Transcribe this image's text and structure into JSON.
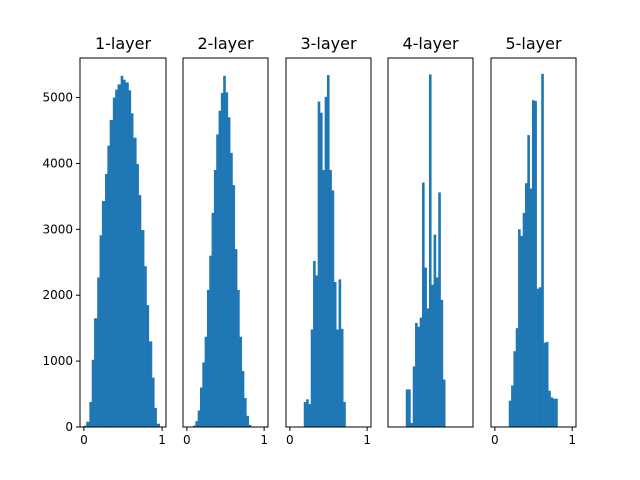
{
  "chart_data": [
    {
      "type": "bar",
      "title": "1-layer",
      "xlim": [
        -0.05,
        1.05
      ],
      "ylim": [
        0,
        5600
      ],
      "x_ticks": [
        "0",
        "1"
      ],
      "y_ticks": [
        "0",
        "1000",
        "2000",
        "3000",
        "4000",
        "5000"
      ],
      "bins": [
        [
          0.0,
          0.03
        ],
        [
          0.03,
          0.07
        ],
        [
          0.07,
          0.1
        ],
        [
          0.1,
          0.13
        ],
        [
          0.13,
          0.17
        ],
        [
          0.17,
          0.2
        ],
        [
          0.2,
          0.23
        ],
        [
          0.23,
          0.27
        ],
        [
          0.27,
          0.3
        ],
        [
          0.3,
          0.33
        ],
        [
          0.33,
          0.37
        ],
        [
          0.37,
          0.4
        ],
        [
          0.4,
          0.43
        ],
        [
          0.43,
          0.47
        ],
        [
          0.47,
          0.5
        ],
        [
          0.5,
          0.53
        ],
        [
          0.53,
          0.57
        ],
        [
          0.57,
          0.6
        ],
        [
          0.6,
          0.63
        ],
        [
          0.63,
          0.67
        ],
        [
          0.67,
          0.7
        ],
        [
          0.7,
          0.73
        ],
        [
          0.73,
          0.77
        ],
        [
          0.77,
          0.8
        ],
        [
          0.8,
          0.83
        ],
        [
          0.83,
          0.87
        ],
        [
          0.87,
          0.9
        ],
        [
          0.9,
          0.93
        ],
        [
          0.93,
          0.97
        ],
        [
          0.97,
          1.0
        ]
      ],
      "values": [
        20,
        80,
        380,
        1020,
        1650,
        2270,
        2910,
        3430,
        3840,
        4270,
        4660,
        5000,
        5120,
        5200,
        5330,
        5270,
        5230,
        5110,
        4760,
        4390,
        3990,
        3520,
        2990,
        2440,
        1850,
        1300,
        750,
        290,
        50,
        5
      ]
    },
    {
      "type": "bar",
      "title": "2-layer",
      "xlim": [
        -0.05,
        1.05
      ],
      "ylim": [
        0,
        5600
      ],
      "x_ticks": [
        "0",
        "1"
      ],
      "bins": [
        [
          0.08,
          0.11
        ],
        [
          0.11,
          0.14
        ],
        [
          0.14,
          0.17
        ],
        [
          0.17,
          0.2
        ],
        [
          0.2,
          0.23
        ],
        [
          0.23,
          0.26
        ],
        [
          0.26,
          0.29
        ],
        [
          0.29,
          0.32
        ],
        [
          0.32,
          0.35
        ],
        [
          0.35,
          0.38
        ],
        [
          0.38,
          0.41
        ],
        [
          0.41,
          0.44
        ],
        [
          0.44,
          0.47
        ],
        [
          0.47,
          0.5
        ],
        [
          0.5,
          0.53
        ],
        [
          0.53,
          0.56
        ],
        [
          0.56,
          0.59
        ],
        [
          0.59,
          0.62
        ],
        [
          0.62,
          0.65
        ],
        [
          0.65,
          0.68
        ],
        [
          0.68,
          0.71
        ],
        [
          0.71,
          0.74
        ],
        [
          0.74,
          0.77
        ],
        [
          0.77,
          0.8
        ],
        [
          0.8,
          0.83
        ],
        [
          0.83,
          0.86
        ],
        [
          0.86,
          0.89
        ]
      ],
      "values": [
        20,
        90,
        250,
        600,
        980,
        1370,
        2080,
        2600,
        3250,
        3900,
        4440,
        4800,
        5070,
        5330,
        5080,
        4700,
        4160,
        3670,
        2700,
        2080,
        1370,
        850,
        440,
        170,
        30,
        5,
        0
      ]
    },
    {
      "type": "bar",
      "title": "3-layer",
      "xlim": [
        -0.05,
        1.05
      ],
      "ylim": [
        0,
        5600
      ],
      "x_ticks": [
        "0",
        "1"
      ],
      "bins": [
        [
          0.18,
          0.21
        ],
        [
          0.21,
          0.24
        ],
        [
          0.24,
          0.27
        ],
        [
          0.27,
          0.3
        ],
        [
          0.3,
          0.33
        ],
        [
          0.33,
          0.36
        ],
        [
          0.36,
          0.39
        ],
        [
          0.39,
          0.42
        ],
        [
          0.42,
          0.45
        ],
        [
          0.45,
          0.48
        ],
        [
          0.48,
          0.51
        ],
        [
          0.51,
          0.54
        ],
        [
          0.54,
          0.57
        ],
        [
          0.57,
          0.6
        ],
        [
          0.6,
          0.63
        ],
        [
          0.63,
          0.66
        ],
        [
          0.66,
          0.69
        ],
        [
          0.69,
          0.72
        ]
      ],
      "values": [
        380,
        420,
        350,
        1480,
        2520,
        2300,
        4940,
        4770,
        3900,
        5010,
        5340,
        3900,
        3590,
        2200,
        1480,
        2240,
        1490,
        380
      ]
    },
    {
      "type": "bar",
      "title": "4-layer",
      "xlim": [
        -0.05,
        1.05
      ],
      "ylim": [
        0,
        5600
      ],
      "x_ticks": [],
      "bins": [
        [
          0.18,
          0.21
        ],
        [
          0.21,
          0.24
        ],
        [
          0.24,
          0.27
        ],
        [
          0.27,
          0.3
        ],
        [
          0.3,
          0.33
        ],
        [
          0.33,
          0.36
        ],
        [
          0.36,
          0.39
        ],
        [
          0.39,
          0.42
        ],
        [
          0.42,
          0.45
        ],
        [
          0.45,
          0.48
        ],
        [
          0.48,
          0.51
        ],
        [
          0.51,
          0.54
        ],
        [
          0.54,
          0.57
        ],
        [
          0.57,
          0.6
        ],
        [
          0.6,
          0.63
        ],
        [
          0.63,
          0.66
        ],
        [
          0.66,
          0.69
        ]
      ],
      "values": [
        570,
        570,
        60,
        920,
        1580,
        1520,
        1660,
        3710,
        2420,
        1800,
        5350,
        2160,
        2920,
        2270,
        3560,
        1930,
        720
      ]
    },
    {
      "type": "bar",
      "title": "5-layer",
      "xlim": [
        -0.05,
        1.05
      ],
      "ylim": [
        0,
        5600
      ],
      "x_ticks": [
        "0",
        "1"
      ],
      "bins": [
        [
          0.18,
          0.21
        ],
        [
          0.21,
          0.24
        ],
        [
          0.24,
          0.27
        ],
        [
          0.27,
          0.3
        ],
        [
          0.3,
          0.33
        ],
        [
          0.33,
          0.36
        ],
        [
          0.36,
          0.39
        ],
        [
          0.39,
          0.42
        ],
        [
          0.42,
          0.45
        ],
        [
          0.45,
          0.48
        ],
        [
          0.48,
          0.51
        ],
        [
          0.51,
          0.54
        ],
        [
          0.54,
          0.57
        ],
        [
          0.57,
          0.6
        ],
        [
          0.6,
          0.63
        ],
        [
          0.63,
          0.66
        ],
        [
          0.66,
          0.69
        ],
        [
          0.69,
          0.72
        ],
        [
          0.72,
          0.75
        ],
        [
          0.75,
          0.78
        ],
        [
          0.78,
          0.81
        ]
      ],
      "values": [
        400,
        630,
        1150,
        1500,
        3000,
        2900,
        3250,
        3700,
        4430,
        3620,
        4960,
        4950,
        2100,
        2120,
        5360,
        1280,
        1290,
        550,
        450,
        430,
        430
      ]
    }
  ]
}
